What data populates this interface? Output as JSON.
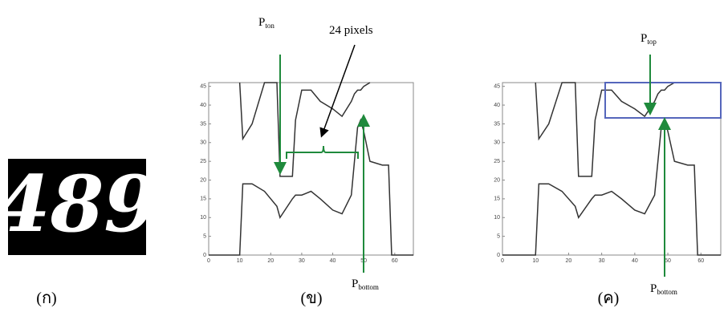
{
  "figure": {
    "image_text": "489",
    "captions": [
      "(ก)",
      "(ข)",
      "(ค)"
    ]
  },
  "chart_data": [
    {
      "type": "line",
      "x": [
        0,
        10,
        11,
        14,
        18,
        22,
        23,
        27,
        28,
        30,
        33,
        36,
        40,
        43,
        46,
        47,
        48,
        49,
        50,
        52,
        56,
        58,
        59,
        66
      ],
      "series": [
        {
          "color": "#333333",
          "values": [
            0,
            0,
            19,
            19,
            17,
            13,
            10,
            15,
            16,
            16,
            17,
            15,
            12,
            11,
            16,
            25,
            34,
            36,
            33,
            25,
            24,
            24,
            0,
            0
          ]
        },
        {
          "color": "#333333",
          "values": [
            null,
            46,
            31,
            35,
            46,
            46,
            21,
            21,
            36,
            44,
            44,
            41,
            39,
            37,
            41,
            43,
            44,
            44,
            45,
            46,
            null,
            null,
            null,
            null
          ]
        }
      ],
      "xlim": [
        0,
        66
      ],
      "ylim": [
        0,
        46
      ],
      "xticks": [
        0,
        10,
        20,
        30,
        40,
        50,
        60
      ],
      "yticks": [
        0,
        5,
        10,
        15,
        20,
        25,
        30,
        35,
        40,
        45
      ],
      "annotations": [
        {
          "text": "P",
          "sub": "ton"
        },
        {
          "text": "24 pixels"
        },
        {
          "text": "P",
          "sub": "bottom"
        }
      ]
    },
    {
      "type": "line",
      "x": [
        0,
        10,
        11,
        14,
        18,
        22,
        23,
        27,
        28,
        30,
        33,
        36,
        40,
        43,
        46,
        47,
        48,
        49,
        50,
        52,
        56,
        58,
        59,
        66
      ],
      "series": [
        {
          "color": "#333333",
          "values": [
            0,
            0,
            19,
            19,
            17,
            13,
            10,
            15,
            16,
            16,
            17,
            15,
            12,
            11,
            16,
            25,
            34,
            36,
            33,
            25,
            24,
            24,
            0,
            0
          ]
        },
        {
          "color": "#333333",
          "values": [
            null,
            46,
            31,
            35,
            46,
            46,
            21,
            21,
            36,
            44,
            44,
            41,
            39,
            37,
            41,
            43,
            44,
            44,
            45,
            46,
            null,
            null,
            null,
            null
          ]
        }
      ],
      "xlim": [
        0,
        66
      ],
      "ylim": [
        0,
        46
      ],
      "xticks": [
        0,
        10,
        20,
        30,
        40,
        50,
        60
      ],
      "yticks": [
        0,
        5,
        10,
        15,
        20,
        25,
        30,
        35,
        40,
        45
      ],
      "annotations": [
        {
          "text": "P",
          "sub": "top"
        },
        {
          "text": "P",
          "sub": "bottom"
        }
      ]
    }
  ]
}
